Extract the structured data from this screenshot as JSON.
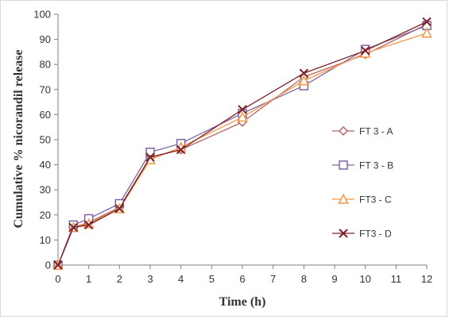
{
  "chart_data": {
    "type": "line",
    "xlabel": "Time (h)",
    "ylabel": "Cumulative % nicorandil release",
    "xlim": [
      0,
      12
    ],
    "ylim": [
      0,
      100
    ],
    "x_ticks": [
      0,
      1,
      2,
      3,
      4,
      5,
      6,
      7,
      8,
      9,
      10,
      11,
      12
    ],
    "y_ticks": [
      0,
      10,
      20,
      30,
      40,
      50,
      60,
      70,
      80,
      90,
      100
    ],
    "grid": false,
    "legend_position": "right",
    "x": [
      0,
      0.5,
      1,
      2,
      3,
      4,
      6,
      8,
      10,
      12
    ],
    "series": [
      {
        "name": "FT 3 - A",
        "marker": "diamond",
        "color": "#b5655f",
        "values": [
          0,
          15,
          17,
          23,
          43,
          46,
          57,
          75,
          84,
          96
        ]
      },
      {
        "name": "FT 3 - B",
        "marker": "square",
        "color": "#8064a2",
        "values": [
          0,
          16,
          18.5,
          24.5,
          45,
          48.5,
          60.5,
          71.5,
          86,
          95.5
        ]
      },
      {
        "name": "FT3 - C",
        "marker": "triangle",
        "color": "#f79646",
        "values": [
          0,
          15,
          16.5,
          22.5,
          42,
          47,
          59,
          73.5,
          84.5,
          92.5
        ]
      },
      {
        "name": "FT3 - D",
        "marker": "x",
        "color": "#7b2328",
        "values": [
          0,
          15,
          16,
          22.5,
          43,
          46,
          62,
          76.5,
          85.5,
          97
        ]
      }
    ]
  }
}
